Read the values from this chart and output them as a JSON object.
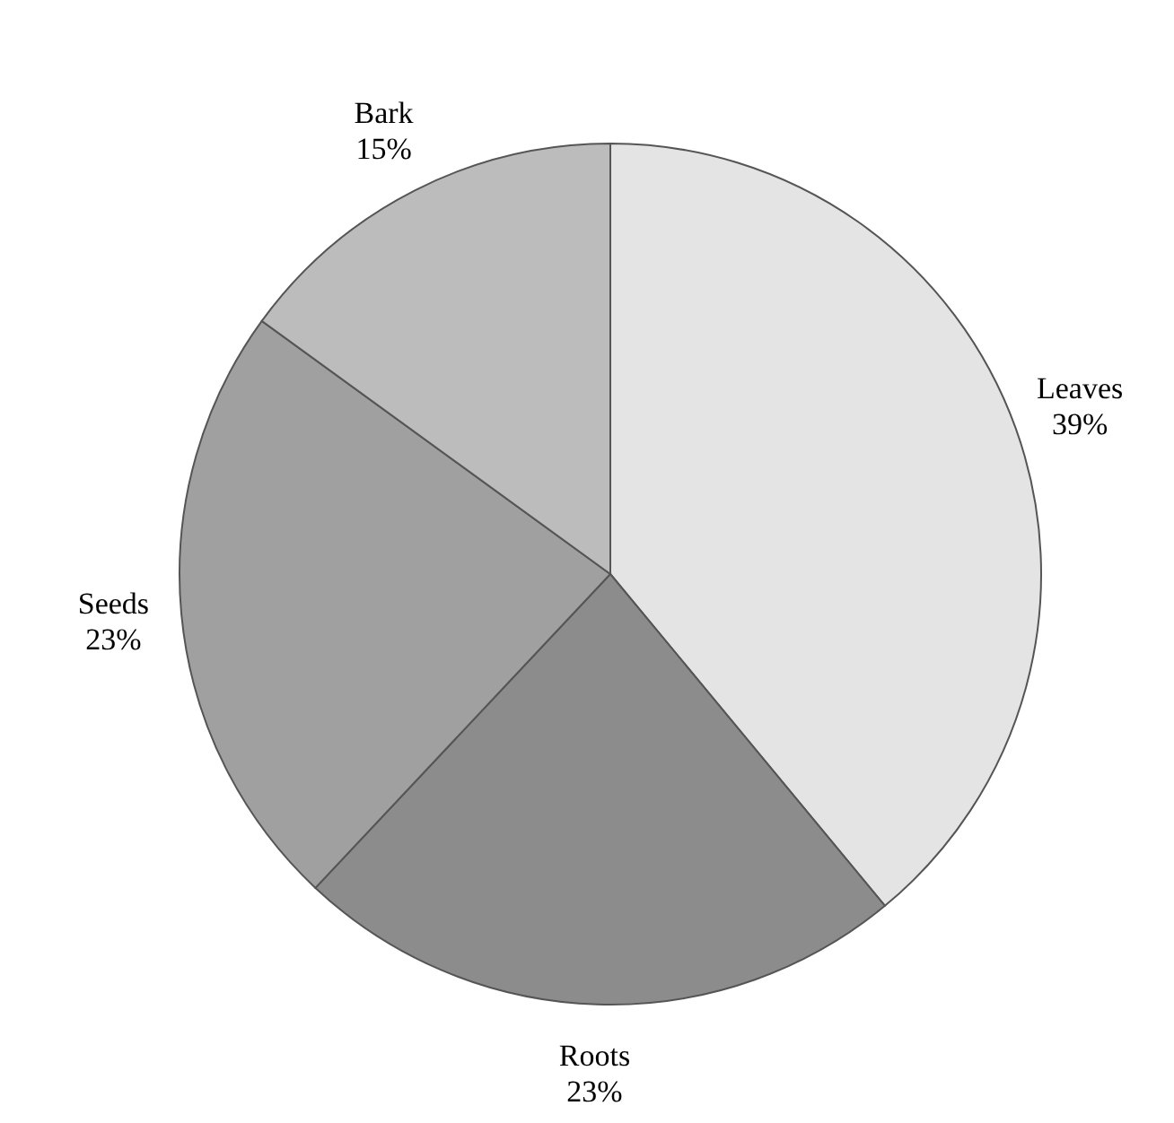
{
  "chart_data": {
    "type": "pie",
    "categories": [
      "Leaves",
      "Roots",
      "Seeds",
      "Bark"
    ],
    "values": [
      39,
      23,
      23,
      15
    ],
    "value_labels": [
      "39%",
      "23%",
      "23%",
      "15%"
    ],
    "colors": [
      "#e4e4e4",
      "#8c8c8c",
      "#a0a0a0",
      "#bcbcbc"
    ]
  }
}
